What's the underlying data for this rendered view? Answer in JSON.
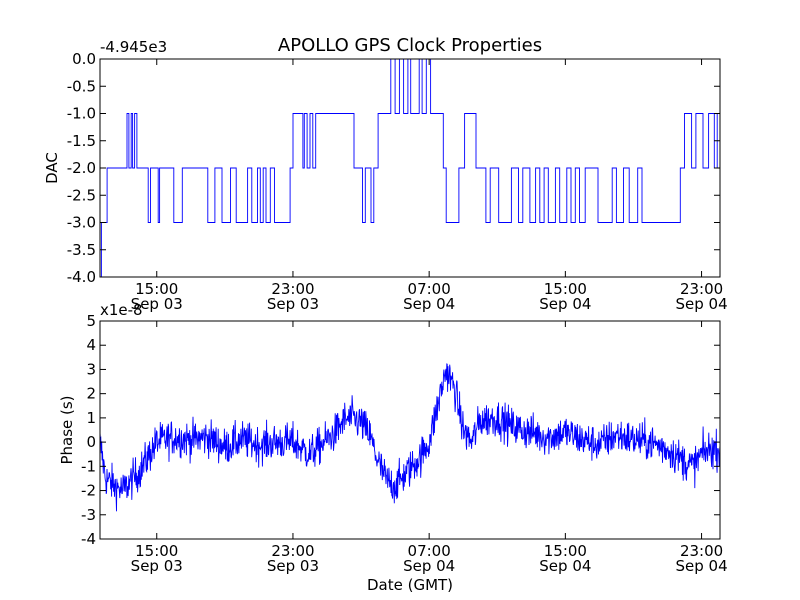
{
  "figure": {
    "title": "APOLLO GPS Clock Properties",
    "xlabel": "Date (GMT)"
  },
  "chart_data": [
    {
      "type": "line",
      "name": "dac-panel",
      "ylabel": "DAC",
      "offset_label": "-4.945e3",
      "ylim": [
        -4.0,
        0.0
      ],
      "yticks": [
        "0.0",
        "-0.5",
        "-1.0",
        "-1.5",
        "-2.0",
        "-2.5",
        "-3.0",
        "-3.5",
        "-4.0"
      ],
      "xlim": [
        "Sep 03 11:40",
        "Sep 05 00:05"
      ],
      "xticks": [
        {
          "time": "15:00",
          "date": "Sep 03"
        },
        {
          "time": "23:00",
          "date": "Sep 03"
        },
        {
          "time": "07:00",
          "date": "Sep 04"
        },
        {
          "time": "15:00",
          "date": "Sep 04"
        },
        {
          "time": "23:00",
          "date": "Sep 04"
        }
      ],
      "color": "#0000ff",
      "x": [
        "Sep 03 11:40",
        "Sep 03 11:45",
        "Sep 03 12:05",
        "Sep 03 12:20",
        "Sep 03 13:15",
        "Sep 03 13:22",
        "Sep 03 13:30",
        "Sep 03 13:35",
        "Sep 03 13:42",
        "Sep 03 13:50",
        "Sep 03 14:20",
        "Sep 03 14:30",
        "Sep 03 14:38",
        "Sep 03 15:05",
        "Sep 03 15:10",
        "Sep 03 16:00",
        "Sep 03 16:30",
        "Sep 03 18:00",
        "Sep 03 18:25",
        "Sep 03 18:50",
        "Sep 03 19:20",
        "Sep 03 19:40",
        "Sep 03 20:20",
        "Sep 03 20:35",
        "Sep 03 20:55",
        "Sep 03 21:05",
        "Sep 03 21:15",
        "Sep 03 21:25",
        "Sep 03 21:40",
        "Sep 03 21:55",
        "Sep 03 22:50",
        "Sep 03 23:00",
        "Sep 03 23:35",
        "Sep 03 23:40",
        "Sep 03 23:50",
        "Sep 04 00:00",
        "Sep 04 00:10",
        "Sep 04 00:20",
        "Sep 04 02:35",
        "Sep 04 03:05",
        "Sep 04 03:15",
        "Sep 04 03:35",
        "Sep 04 03:45",
        "Sep 04 04:00",
        "Sep 04 04:15",
        "Sep 04 04:45",
        "Sep 04 05:00",
        "Sep 04 05:15",
        "Sep 04 05:30",
        "Sep 04 05:45",
        "Sep 04 05:55",
        "Sep 04 06:25",
        "Sep 04 06:35",
        "Sep 04 06:50",
        "Sep 04 07:05",
        "Sep 04 07:30",
        "Sep 04 07:50",
        "Sep 04 08:00",
        "Sep 04 08:20",
        "Sep 04 08:45",
        "Sep 04 09:05",
        "Sep 04 09:45",
        "Sep 04 10:05",
        "Sep 04 10:20",
        "Sep 04 10:35",
        "Sep 04 11:05",
        "Sep 04 11:50",
        "Sep 04 12:15",
        "Sep 04 12:30",
        "Sep 04 12:55",
        "Sep 04 13:15",
        "Sep 04 13:30",
        "Sep 04 13:45",
        "Sep 04 14:00",
        "Sep 04 14:25",
        "Sep 04 14:40",
        "Sep 04 15:05",
        "Sep 04 15:20",
        "Sep 04 15:35",
        "Sep 04 15:50",
        "Sep 04 16:10",
        "Sep 04 16:55",
        "Sep 04 17:45",
        "Sep 04 18:00",
        "Sep 04 18:25",
        "Sep 04 18:45",
        "Sep 04 19:15",
        "Sep 04 19:30",
        "Sep 04 21:45",
        "Sep 04 22:00",
        "Sep 04 22:25",
        "Sep 04 22:40",
        "Sep 04 23:05",
        "Sep 04 23:25",
        "Sep 04 23:45",
        "Sep 04 23:55"
      ],
      "values": [
        -4.0,
        -3.0,
        -2.0,
        -2.0,
        -1.0,
        -2.0,
        -1.0,
        -2.0,
        -1.0,
        -2.0,
        -2.0,
        -3.0,
        -2.0,
        -3.0,
        -2.0,
        -3.0,
        -2.0,
        -3.0,
        -2.0,
        -3.0,
        -2.0,
        -3.0,
        -2.0,
        -3.0,
        -2.0,
        -3.0,
        -2.0,
        -3.0,
        -2.0,
        -3.0,
        -2.0,
        -1.0,
        -2.0,
        -1.0,
        -2.0,
        -1.0,
        -2.0,
        -1.0,
        -2.0,
        -3.0,
        -2.0,
        -3.0,
        -2.0,
        -1.0,
        -1.0,
        -0.0,
        -1.0,
        -0.0,
        -1.0,
        -0.0,
        -1.0,
        -0.0,
        -1.0,
        -0.0,
        -1.0,
        -1.0,
        -2.0,
        -3.0,
        -3.0,
        -2.0,
        -1.0,
        -2.0,
        -2.0,
        -3.0,
        -2.0,
        -3.0,
        -2.0,
        -3.0,
        -2.0,
        -3.0,
        -2.0,
        -3.0,
        -2.0,
        -3.0,
        -2.0,
        -3.0,
        -2.0,
        -3.0,
        -2.0,
        -3.0,
        -2.0,
        -3.0,
        -2.0,
        -3.0,
        -2.0,
        -3.0,
        -2.0,
        -3.0,
        -2.0,
        -1.0,
        -2.0,
        -1.0,
        -2.0,
        -1.0,
        -2.0,
        -1.0
      ]
    },
    {
      "type": "line",
      "name": "phase-panel",
      "ylabel": "Phase (s)",
      "offset_label": "x1e-8",
      "ylim": [
        -4,
        5
      ],
      "yticks": [
        "5",
        "4",
        "3",
        "2",
        "1",
        "0",
        "-1",
        "-2",
        "-3",
        "-4"
      ],
      "xlim": [
        "Sep 03 11:40",
        "Sep 05 00:05"
      ],
      "xticks": [
        {
          "time": "15:00",
          "date": "Sep 03"
        },
        {
          "time": "23:00",
          "date": "Sep 03"
        },
        {
          "time": "07:00",
          "date": "Sep 04"
        },
        {
          "time": "15:00",
          "date": "Sep 04"
        },
        {
          "time": "23:00",
          "date": "Sep 04"
        }
      ],
      "color": "#0000ff",
      "x": [
        "Sep 03 11:40",
        "Sep 03 12:00",
        "Sep 03 12:30",
        "Sep 03 13:00",
        "Sep 03 13:30",
        "Sep 03 14:00",
        "Sep 03 14:30",
        "Sep 03 15:00",
        "Sep 03 16:00",
        "Sep 03 17:00",
        "Sep 03 18:00",
        "Sep 03 19:00",
        "Sep 03 20:00",
        "Sep 03 21:00",
        "Sep 03 22:00",
        "Sep 03 23:00",
        "Sep 04 00:00",
        "Sep 04 01:00",
        "Sep 04 01:30",
        "Sep 04 02:00",
        "Sep 04 02:30",
        "Sep 04 03:00",
        "Sep 04 03:30",
        "Sep 04 04:00",
        "Sep 04 04:30",
        "Sep 04 05:00",
        "Sep 04 05:30",
        "Sep 04 06:00",
        "Sep 04 06:30",
        "Sep 04 07:00",
        "Sep 04 07:30",
        "Sep 04 08:00",
        "Sep 04 08:30",
        "Sep 04 09:00",
        "Sep 04 09:30",
        "Sep 04 10:00",
        "Sep 04 11:00",
        "Sep 04 12:00",
        "Sep 04 13:00",
        "Sep 04 14:00",
        "Sep 04 15:00",
        "Sep 04 16:00",
        "Sep 04 17:00",
        "Sep 04 18:00",
        "Sep 04 19:00",
        "Sep 04 20:00",
        "Sep 04 21:00",
        "Sep 04 22:00",
        "Sep 04 22:30",
        "Sep 04 23:00",
        "Sep 04 23:30",
        "Sep 05 00:05"
      ],
      "values": [
        0.0,
        -1.5,
        -1.8,
        -2.0,
        -1.6,
        -1.2,
        -0.6,
        0.0,
        0.2,
        0.1,
        0.2,
        -0.2,
        0.1,
        -0.1,
        0.0,
        0.0,
        -0.5,
        0.1,
        0.4,
        0.9,
        1.0,
        0.8,
        0.3,
        -0.8,
        -1.6,
        -1.8,
        -1.4,
        -1.0,
        -0.6,
        0.0,
        1.5,
        3.0,
        2.2,
        0.5,
        0.0,
        0.9,
        1.0,
        0.6,
        0.4,
        0.2,
        0.4,
        0.1,
        -0.1,
        0.3,
        0.1,
        0.0,
        -0.3,
        -0.8,
        -1.0,
        -0.5,
        -0.3,
        -0.3
      ]
    }
  ]
}
